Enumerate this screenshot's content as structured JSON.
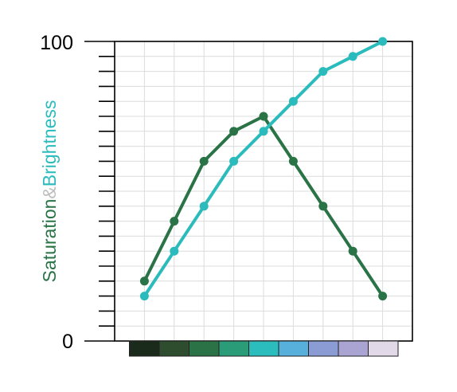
{
  "chart_data": {
    "type": "line",
    "title": "",
    "ylabel": {
      "part1": "Saturation",
      "sep": "&",
      "part2": "Brightness",
      "part1_color": "#2a7347",
      "sep_color": "#bdbdbd",
      "part2_color": "#2bbbbd"
    },
    "ytick_labels": {
      "min": "0",
      "max": "100"
    },
    "ylim": [
      0,
      100
    ],
    "ytick_count": 20,
    "x": [
      1,
      2,
      3,
      4,
      5,
      6,
      7,
      8,
      9
    ],
    "series": [
      {
        "key": "saturation",
        "color": "#2a7347",
        "values": [
          20,
          40,
          60,
          70,
          75,
          60,
          45,
          30,
          15
        ]
      },
      {
        "key": "brightness",
        "color": "#2bbbbd",
        "values": [
          15,
          30,
          45,
          60,
          70,
          80,
          90,
          95,
          100
        ]
      }
    ],
    "grid": true,
    "swatches": [
      "#1b2b1b",
      "#2e4d2f",
      "#2b7247",
      "#2a9c78",
      "#2bbdbd",
      "#57afdc",
      "#8a9cd3",
      "#aaa4d3",
      "#e1d9e8"
    ]
  }
}
